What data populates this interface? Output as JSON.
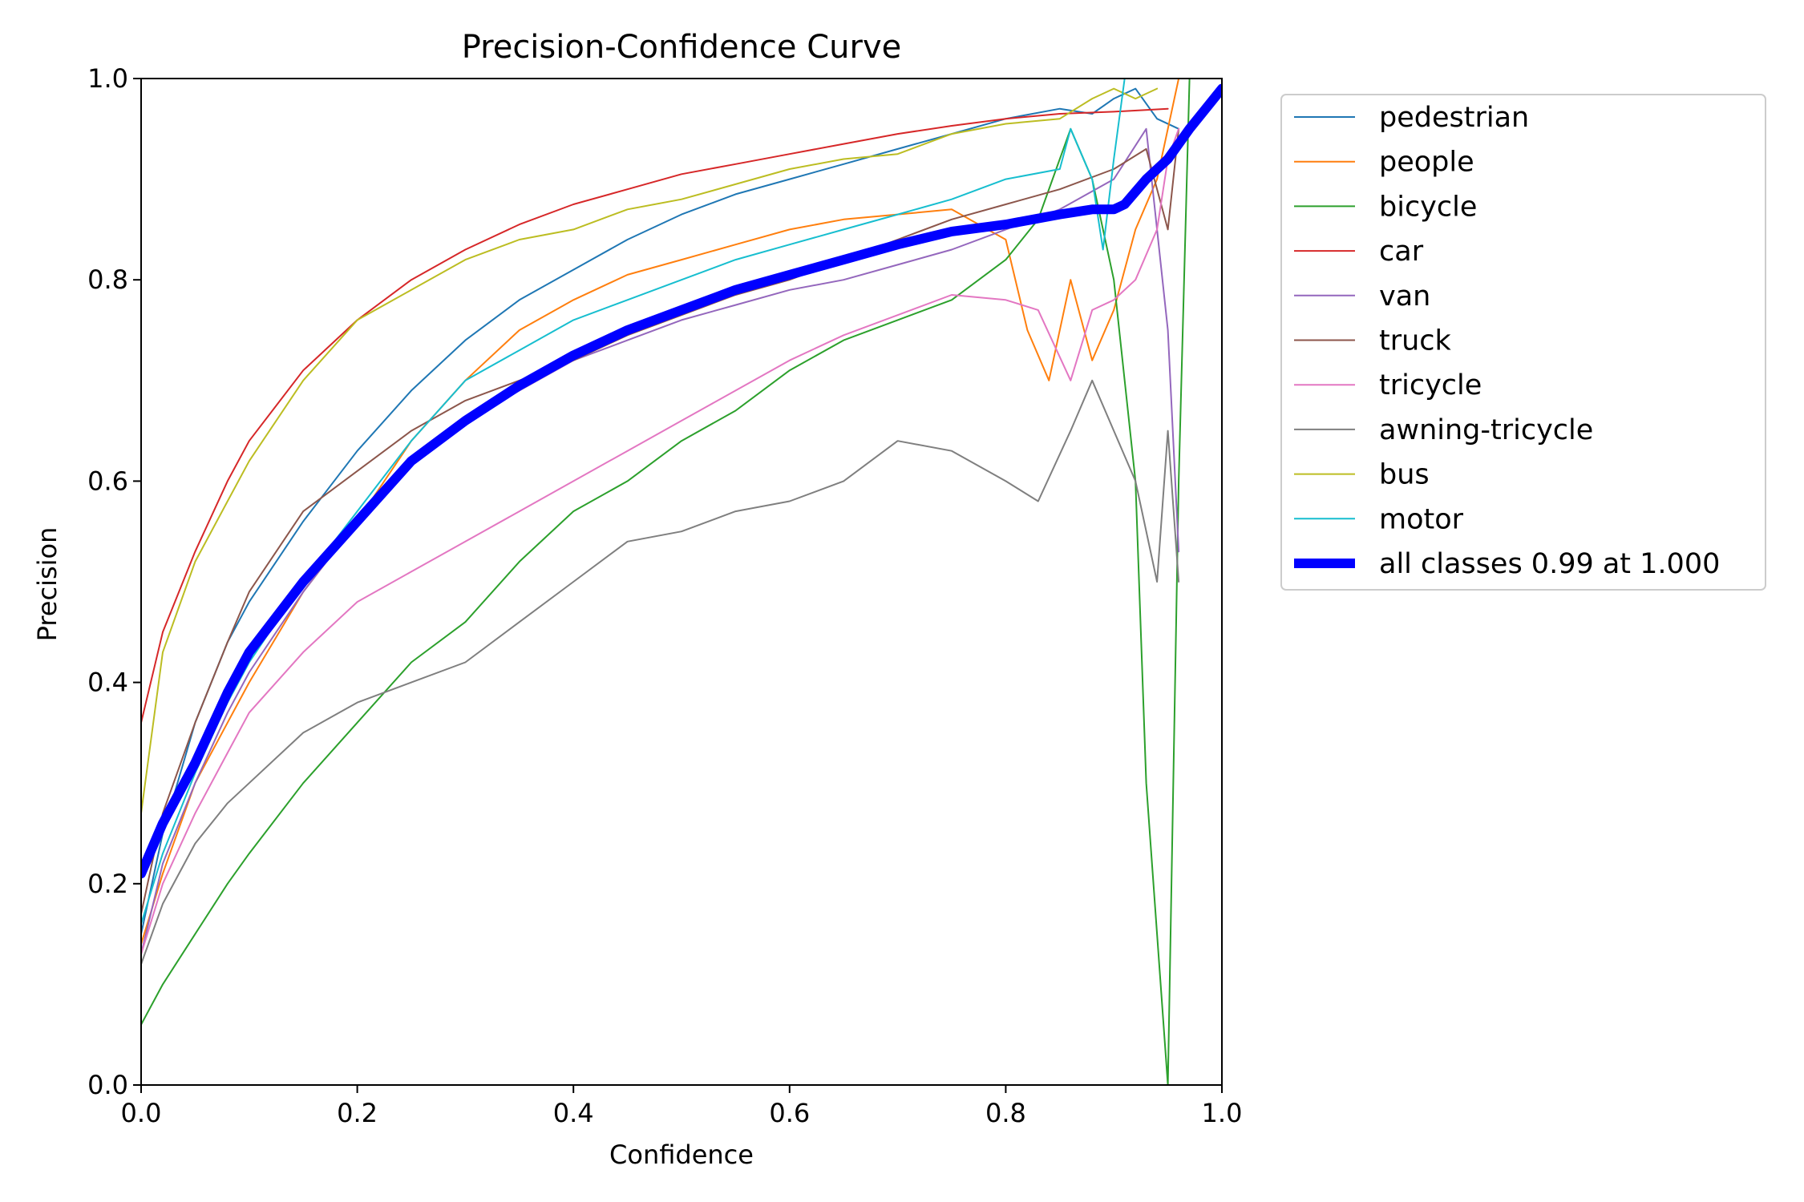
{
  "chart_data": {
    "type": "line",
    "title": "Precision-Confidence Curve",
    "xlabel": "Confidence",
    "ylabel": "Precision",
    "xlim": [
      0,
      1
    ],
    "ylim": [
      0,
      1
    ],
    "xticks": [
      "0.0",
      "0.2",
      "0.4",
      "0.6",
      "0.8",
      "1.0"
    ],
    "yticks": [
      "0.0",
      "0.2",
      "0.4",
      "0.6",
      "0.8",
      "1.0"
    ],
    "grid": false,
    "legend_position": "outside-upper-right",
    "series": [
      {
        "name": "pedestrian",
        "color": "#1f77b4",
        "width": 1,
        "x": [
          0,
          0.02,
          0.05,
          0.08,
          0.1,
          0.15,
          0.2,
          0.25,
          0.3,
          0.35,
          0.4,
          0.45,
          0.5,
          0.55,
          0.6,
          0.65,
          0.7,
          0.75,
          0.8,
          0.85,
          0.88,
          0.9,
          0.92,
          0.94,
          0.96
        ],
        "y": [
          0.15,
          0.25,
          0.36,
          0.44,
          0.48,
          0.56,
          0.63,
          0.69,
          0.74,
          0.78,
          0.81,
          0.84,
          0.865,
          0.885,
          0.9,
          0.915,
          0.93,
          0.945,
          0.96,
          0.97,
          0.965,
          0.98,
          0.99,
          0.96,
          0.95
        ]
      },
      {
        "name": "people",
        "color": "#ff7f0e",
        "width": 1,
        "x": [
          0,
          0.02,
          0.05,
          0.08,
          0.1,
          0.15,
          0.2,
          0.25,
          0.3,
          0.35,
          0.4,
          0.45,
          0.5,
          0.55,
          0.6,
          0.65,
          0.7,
          0.75,
          0.8,
          0.82,
          0.84,
          0.86,
          0.88,
          0.9,
          0.92,
          0.94,
          0.96
        ],
        "y": [
          0.14,
          0.21,
          0.3,
          0.36,
          0.4,
          0.49,
          0.56,
          0.64,
          0.7,
          0.75,
          0.78,
          0.805,
          0.82,
          0.835,
          0.85,
          0.86,
          0.865,
          0.87,
          0.84,
          0.75,
          0.7,
          0.8,
          0.72,
          0.77,
          0.85,
          0.9,
          1.0
        ]
      },
      {
        "name": "bicycle",
        "color": "#2ca02c",
        "width": 1,
        "x": [
          0,
          0.02,
          0.05,
          0.08,
          0.1,
          0.15,
          0.2,
          0.25,
          0.3,
          0.35,
          0.4,
          0.45,
          0.5,
          0.55,
          0.6,
          0.65,
          0.7,
          0.75,
          0.8,
          0.83,
          0.86,
          0.88,
          0.9,
          0.92,
          0.93,
          0.95,
          0.96,
          0.97
        ],
        "y": [
          0.06,
          0.1,
          0.15,
          0.2,
          0.23,
          0.3,
          0.36,
          0.42,
          0.46,
          0.52,
          0.57,
          0.6,
          0.64,
          0.67,
          0.71,
          0.74,
          0.76,
          0.78,
          0.82,
          0.86,
          0.95,
          0.9,
          0.8,
          0.6,
          0.3,
          0.0,
          0.6,
          1.0
        ]
      },
      {
        "name": "car",
        "color": "#d62728",
        "width": 1,
        "x": [
          0,
          0.02,
          0.05,
          0.08,
          0.1,
          0.15,
          0.2,
          0.25,
          0.3,
          0.35,
          0.4,
          0.45,
          0.5,
          0.55,
          0.6,
          0.65,
          0.7,
          0.75,
          0.8,
          0.85,
          0.9,
          0.95
        ],
        "y": [
          0.36,
          0.45,
          0.53,
          0.6,
          0.64,
          0.71,
          0.76,
          0.8,
          0.83,
          0.855,
          0.875,
          0.89,
          0.905,
          0.915,
          0.925,
          0.935,
          0.945,
          0.953,
          0.96,
          0.965,
          0.967,
          0.97
        ]
      },
      {
        "name": "van",
        "color": "#9467bd",
        "width": 1,
        "x": [
          0,
          0.02,
          0.05,
          0.08,
          0.1,
          0.15,
          0.2,
          0.25,
          0.3,
          0.35,
          0.4,
          0.45,
          0.5,
          0.55,
          0.6,
          0.65,
          0.7,
          0.75,
          0.8,
          0.85,
          0.9,
          0.93,
          0.95,
          0.96
        ],
        "y": [
          0.13,
          0.22,
          0.3,
          0.37,
          0.41,
          0.49,
          0.56,
          0.62,
          0.66,
          0.69,
          0.72,
          0.74,
          0.76,
          0.775,
          0.79,
          0.8,
          0.815,
          0.83,
          0.85,
          0.87,
          0.9,
          0.95,
          0.75,
          0.53
        ]
      },
      {
        "name": "truck",
        "color": "#8c564b",
        "width": 1,
        "x": [
          0,
          0.02,
          0.05,
          0.08,
          0.1,
          0.15,
          0.2,
          0.25,
          0.3,
          0.35,
          0.4,
          0.45,
          0.5,
          0.55,
          0.6,
          0.65,
          0.7,
          0.75,
          0.8,
          0.85,
          0.9,
          0.93,
          0.95,
          0.96
        ],
        "y": [
          0.17,
          0.27,
          0.36,
          0.44,
          0.49,
          0.57,
          0.61,
          0.65,
          0.68,
          0.7,
          0.72,
          0.745,
          0.765,
          0.785,
          0.8,
          0.82,
          0.84,
          0.86,
          0.875,
          0.89,
          0.91,
          0.93,
          0.85,
          0.95
        ]
      },
      {
        "name": "tricycle",
        "color": "#e377c2",
        "width": 1,
        "x": [
          0,
          0.02,
          0.05,
          0.08,
          0.1,
          0.15,
          0.2,
          0.25,
          0.3,
          0.35,
          0.4,
          0.45,
          0.5,
          0.55,
          0.6,
          0.65,
          0.7,
          0.75,
          0.8,
          0.83,
          0.86,
          0.88,
          0.9,
          0.92,
          0.94,
          0.95,
          0.96
        ],
        "y": [
          0.13,
          0.2,
          0.27,
          0.33,
          0.37,
          0.43,
          0.48,
          0.51,
          0.54,
          0.57,
          0.6,
          0.63,
          0.66,
          0.69,
          0.72,
          0.745,
          0.765,
          0.785,
          0.78,
          0.77,
          0.7,
          0.77,
          0.78,
          0.8,
          0.85,
          0.92,
          0.95
        ]
      },
      {
        "name": "awning-tricycle",
        "color": "#7f7f7f",
        "width": 1,
        "x": [
          0,
          0.02,
          0.05,
          0.08,
          0.1,
          0.15,
          0.2,
          0.25,
          0.3,
          0.35,
          0.4,
          0.45,
          0.5,
          0.55,
          0.6,
          0.65,
          0.7,
          0.75,
          0.8,
          0.83,
          0.86,
          0.88,
          0.9,
          0.92,
          0.94,
          0.95,
          0.96
        ],
        "y": [
          0.12,
          0.18,
          0.24,
          0.28,
          0.3,
          0.35,
          0.38,
          0.4,
          0.42,
          0.46,
          0.5,
          0.54,
          0.55,
          0.57,
          0.58,
          0.6,
          0.64,
          0.63,
          0.6,
          0.58,
          0.65,
          0.7,
          0.65,
          0.6,
          0.5,
          0.65,
          0.5
        ]
      },
      {
        "name": "bus",
        "color": "#bcbd22",
        "width": 1,
        "x": [
          0,
          0.02,
          0.05,
          0.08,
          0.1,
          0.15,
          0.2,
          0.25,
          0.3,
          0.35,
          0.4,
          0.45,
          0.5,
          0.55,
          0.6,
          0.65,
          0.7,
          0.75,
          0.8,
          0.85,
          0.88,
          0.9,
          0.92,
          0.94
        ],
        "y": [
          0.27,
          0.43,
          0.52,
          0.58,
          0.62,
          0.7,
          0.76,
          0.79,
          0.82,
          0.84,
          0.85,
          0.87,
          0.88,
          0.895,
          0.91,
          0.92,
          0.925,
          0.945,
          0.955,
          0.96,
          0.98,
          0.99,
          0.98,
          0.99
        ]
      },
      {
        "name": "motor",
        "color": "#17becf",
        "width": 1,
        "x": [
          0,
          0.02,
          0.05,
          0.08,
          0.1,
          0.15,
          0.2,
          0.25,
          0.3,
          0.35,
          0.4,
          0.45,
          0.5,
          0.55,
          0.6,
          0.65,
          0.7,
          0.75,
          0.8,
          0.85,
          0.86,
          0.88,
          0.89,
          0.9,
          0.91
        ],
        "y": [
          0.16,
          0.23,
          0.31,
          0.38,
          0.42,
          0.5,
          0.57,
          0.64,
          0.7,
          0.73,
          0.76,
          0.78,
          0.8,
          0.82,
          0.835,
          0.85,
          0.865,
          0.88,
          0.9,
          0.91,
          0.95,
          0.9,
          0.83,
          0.92,
          1.0
        ]
      },
      {
        "name": "all classes 0.99 at 1.000",
        "color": "#0000ff",
        "width": 6,
        "x": [
          0,
          0.02,
          0.05,
          0.08,
          0.1,
          0.15,
          0.2,
          0.25,
          0.3,
          0.35,
          0.4,
          0.45,
          0.5,
          0.55,
          0.6,
          0.65,
          0.7,
          0.75,
          0.8,
          0.85,
          0.88,
          0.9,
          0.91,
          0.93,
          0.95,
          0.97,
          1.0
        ],
        "y": [
          0.21,
          0.26,
          0.32,
          0.39,
          0.43,
          0.5,
          0.56,
          0.62,
          0.66,
          0.695,
          0.725,
          0.75,
          0.77,
          0.79,
          0.805,
          0.82,
          0.835,
          0.848,
          0.855,
          0.865,
          0.87,
          0.87,
          0.875,
          0.9,
          0.92,
          0.95,
          0.99
        ]
      }
    ]
  }
}
